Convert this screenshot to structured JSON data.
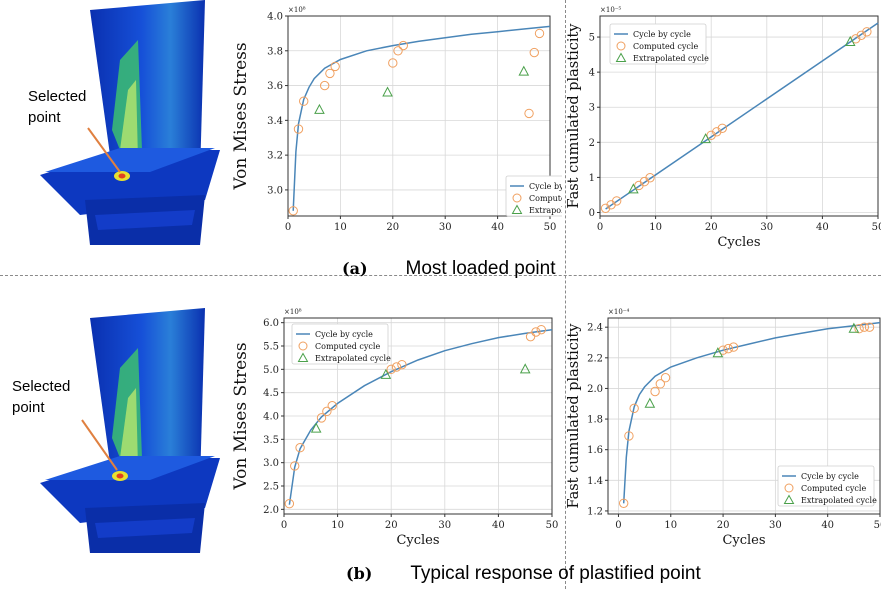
{
  "rows": [
    {
      "tag": "(a)",
      "caption": "Most loaded point",
      "selected_label": "Selected\npoint",
      "chart_data": [
        {
          "type": "line",
          "xlabel": "",
          "ylabel": "Von Mises Stress",
          "exponent": "×10⁸",
          "xlim": [
            0,
            50
          ],
          "ylim": [
            2.85,
            4.0
          ],
          "xticks": [
            0,
            10,
            20,
            30,
            40,
            50
          ],
          "yticks": [
            3.0,
            3.2,
            3.4,
            3.6,
            3.8,
            4.0
          ],
          "ytick_labels": [
            "3.0",
            "3.2",
            "3.4",
            "3.6",
            "3.8",
            "4.0"
          ],
          "grid": true,
          "legend_position": "bottom-right",
          "series": [
            {
              "name": "Cycle by cycle",
              "kind": "line",
              "color": "#4a86b8",
              "x": [
                1,
                1.5,
                2,
                3,
                4,
                5,
                7,
                10,
                15,
                20,
                25,
                30,
                35,
                40,
                45,
                50
              ],
              "y": [
                2.88,
                3.22,
                3.38,
                3.52,
                3.59,
                3.64,
                3.7,
                3.75,
                3.8,
                3.83,
                3.855,
                3.875,
                3.895,
                3.91,
                3.925,
                3.94
              ]
            },
            {
              "name": "Computed cycle",
              "kind": "circle",
              "color": "#f0a060",
              "x": [
                1,
                2,
                3,
                7,
                8,
                9,
                20,
                21,
                22,
                46,
                47,
                48
              ],
              "y": [
                2.88,
                3.35,
                3.51,
                3.6,
                3.67,
                3.71,
                3.73,
                3.8,
                3.83,
                3.44,
                3.79,
                3.9
              ]
            },
            {
              "name": "Extrapolated cycle",
              "kind": "triangle",
              "color": "#4aa04a",
              "x": [
                6,
                19,
                45
              ],
              "y": [
                3.46,
                3.56,
                3.68
              ]
            }
          ]
        },
        {
          "type": "line",
          "xlabel": "Cycles",
          "ylabel": "Fast cumulated plasticity",
          "exponent": "×10⁻⁵",
          "xlim": [
            0,
            50
          ],
          "ylim": [
            -0.1,
            5.6
          ],
          "xticks": [
            0,
            10,
            20,
            30,
            40,
            50
          ],
          "yticks": [
            0,
            1,
            2,
            3,
            4,
            5
          ],
          "ytick_labels": [
            "0",
            "1",
            "2",
            "3",
            "4",
            "5"
          ],
          "grid": true,
          "legend_position": "top-left",
          "series": [
            {
              "name": "Cycle by cycle",
              "kind": "line",
              "color": "#4a86b8",
              "x": [
                1,
                50
              ],
              "y": [
                0.1,
                5.4
              ]
            },
            {
              "name": "Computed cycle",
              "kind": "circle",
              "color": "#f0a060",
              "x": [
                1,
                2,
                3,
                7,
                8,
                9,
                20,
                21,
                22,
                46,
                47,
                48
              ],
              "y": [
                0.12,
                0.22,
                0.33,
                0.77,
                0.88,
                0.99,
                2.2,
                2.3,
                2.4,
                4.95,
                5.05,
                5.15
              ]
            },
            {
              "name": "Extrapolated cycle",
              "kind": "triangle",
              "color": "#4aa04a",
              "x": [
                6,
                19,
                45
              ],
              "y": [
                0.66,
                2.09,
                4.86
              ]
            }
          ]
        }
      ]
    },
    {
      "tag": "(b)",
      "caption": "Typical response of plastified point",
      "selected_label": "Selected\npoint",
      "chart_data": [
        {
          "type": "line",
          "xlabel": "Cycles",
          "ylabel": "Von Mises Stress",
          "exponent": "×10⁸",
          "xlim": [
            0,
            50
          ],
          "ylim": [
            1.9,
            6.1
          ],
          "xticks": [
            0,
            10,
            20,
            30,
            40,
            50
          ],
          "yticks": [
            2.0,
            2.5,
            3.0,
            3.5,
            4.0,
            4.5,
            5.0,
            5.5,
            6.0
          ],
          "ytick_labels": [
            "2.0",
            "2.5",
            "3.0",
            "3.5",
            "4.0",
            "4.5",
            "5.0",
            "5.5",
            "6.0"
          ],
          "grid": true,
          "legend_position": "top-left",
          "series": [
            {
              "name": "Cycle by cycle",
              "kind": "line",
              "color": "#4a86b8",
              "x": [
                1,
                2,
                3,
                5,
                7,
                10,
                15,
                20,
                25,
                30,
                35,
                40,
                45,
                48,
                50
              ],
              "y": [
                2.1,
                2.9,
                3.3,
                3.7,
                3.98,
                4.27,
                4.65,
                4.95,
                5.2,
                5.4,
                5.55,
                5.68,
                5.77,
                5.82,
                5.85
              ]
            },
            {
              "name": "Computed cycle",
              "kind": "circle",
              "color": "#f0a060",
              "x": [
                1,
                2,
                3,
                7,
                8,
                9,
                20,
                21,
                22,
                46,
                47,
                48
              ],
              "y": [
                2.12,
                2.93,
                3.32,
                3.96,
                4.1,
                4.22,
                5.0,
                5.05,
                5.1,
                5.7,
                5.8,
                5.85
              ]
            },
            {
              "name": "Extrapolated cycle",
              "kind": "triangle",
              "color": "#4aa04a",
              "x": [
                6,
                19,
                45
              ],
              "y": [
                3.73,
                4.88,
                5.0
              ]
            }
          ]
        },
        {
          "type": "line",
          "xlabel": "Cycles",
          "ylabel": "Fast cumulated plasticity",
          "exponent": "×10⁻⁴",
          "xlim": [
            -2,
            50
          ],
          "ylim": [
            1.18,
            2.46
          ],
          "xticks": [
            0,
            10,
            20,
            30,
            40,
            50
          ],
          "yticks": [
            1.2,
            1.4,
            1.6,
            1.8,
            2.0,
            2.2,
            2.4
          ],
          "ytick_labels": [
            "1.2",
            "1.4",
            "1.6",
            "1.8",
            "2.0",
            "2.2",
            "2.4"
          ],
          "grid": true,
          "legend_position": "bottom-right",
          "series": [
            {
              "name": "Cycle by cycle",
              "kind": "line",
              "color": "#4a86b8",
              "x": [
                1,
                1.5,
                2,
                3,
                4,
                5,
                7,
                10,
                15,
                20,
                25,
                30,
                35,
                40,
                45,
                50
              ],
              "y": [
                1.25,
                1.55,
                1.72,
                1.88,
                1.96,
                2.01,
                2.08,
                2.14,
                2.2,
                2.25,
                2.29,
                2.33,
                2.36,
                2.39,
                2.41,
                2.43
              ]
            },
            {
              "name": "Computed cycle",
              "kind": "circle",
              "color": "#f0a060",
              "x": [
                1,
                2,
                3,
                7,
                8,
                9,
                20,
                21,
                22,
                46,
                47,
                48
              ],
              "y": [
                1.25,
                1.69,
                1.87,
                1.98,
                2.03,
                2.07,
                2.25,
                2.26,
                2.27,
                2.39,
                2.4,
                2.4
              ]
            },
            {
              "name": "Extrapolated cycle",
              "kind": "triangle",
              "color": "#4aa04a",
              "x": [
                6,
                19,
                45
              ],
              "y": [
                1.9,
                2.23,
                2.39
              ]
            }
          ]
        }
      ]
    }
  ],
  "colors": {
    "blade_blue": "#1040c8",
    "stress_green": "#40c060",
    "stress_yellow": "#e8e830",
    "pointer_orange": "#e08040"
  }
}
